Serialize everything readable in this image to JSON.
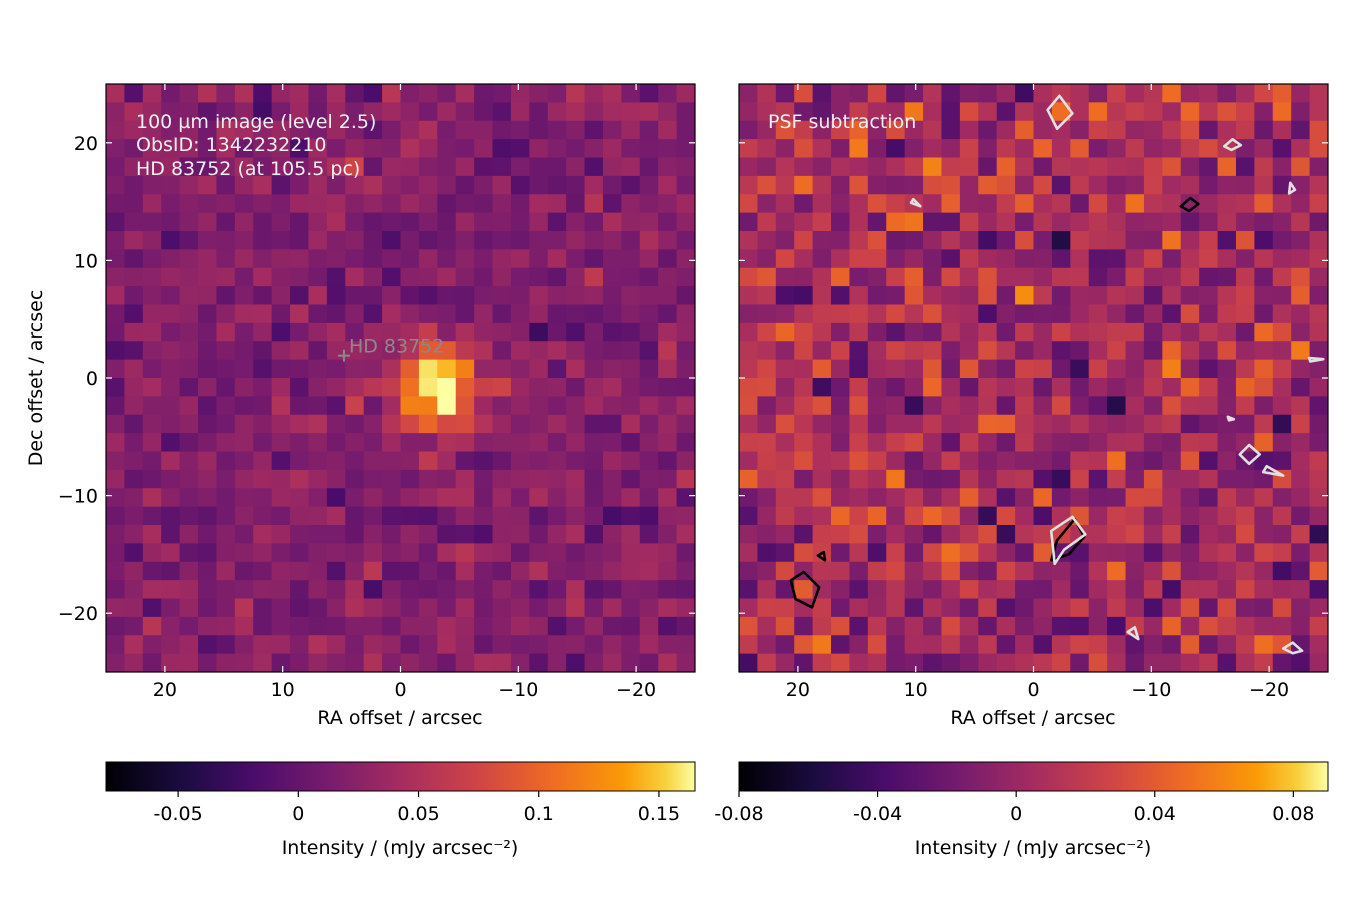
{
  "chart_data": [
    {
      "type": "heatmap",
      "annotations": [
        "100 µm image (level 2.5)",
        "ObsID: 1342232210",
        "HD 83752 (at 105.5 pc)"
      ],
      "star_marker": {
        "label": "HD  83752",
        "x": 4.8,
        "y": 1.9
      },
      "xlabel": "RA offset / arcsec",
      "ylabel": "Dec offset / arcsec",
      "xlim": [
        25,
        -25
      ],
      "ylim": [
        -25,
        25
      ],
      "xticks": [
        20,
        10,
        0,
        -10,
        -20
      ],
      "xtick_labels": [
        "20",
        "10",
        "0",
        "−10",
        "−20"
      ],
      "yticks": [
        20,
        10,
        0,
        -10,
        -20
      ],
      "ytick_labels": [
        "20",
        "10",
        "0",
        "−10",
        "−20"
      ],
      "grid_size": 32,
      "value_range": [
        -0.08,
        0.165
      ],
      "colorbar": {
        "label": "Intensity / (mJy arcsec⁻²)",
        "ticks": [
          -0.05,
          0,
          0.05,
          0.1,
          0.15
        ],
        "tick_labels": [
          "-0.05",
          "0",
          "0.05",
          "0.1",
          "0.15"
        ]
      },
      "source_peak": {
        "x": -3.0,
        "y": -0.5,
        "value": 0.165
      }
    },
    {
      "type": "heatmap",
      "annotations": [
        "PSF subtraction"
      ],
      "xlabel": "RA offset / arcsec",
      "xlim": [
        25,
        -25
      ],
      "ylim": [
        -25,
        25
      ],
      "xticks": [
        20,
        10,
        0,
        -10,
        -20
      ],
      "xtick_labels": [
        "20",
        "10",
        "0",
        "−10",
        "−20"
      ],
      "grid_size": 32,
      "value_range": [
        -0.08,
        0.09
      ],
      "colorbar": {
        "label": "Intensity / (mJy arcsec⁻²)",
        "ticks": [
          -0.08,
          -0.04,
          0,
          0.04,
          0.08
        ],
        "tick_labels": [
          "-0.08",
          "-0.04",
          "0",
          "0.04",
          "0.08"
        ]
      },
      "contours": [
        {
          "color": "#000000",
          "points": [
            [
              19.5,
              -16.5
            ],
            [
              18.2,
              -17.8
            ],
            [
              18.8,
              -19.5
            ],
            [
              20.2,
              -18.8
            ],
            [
              20.6,
              -17.2
            ]
          ]
        },
        {
          "color": "#000000",
          "points": [
            [
              -1.5,
              -15.5
            ],
            [
              -2.0,
              -13.8
            ],
            [
              -3.5,
              -12.0
            ],
            [
              -4.3,
              -13.5
            ],
            [
              -3.0,
              -15.0
            ]
          ]
        },
        {
          "color": "#000000",
          "points": [
            [
              -12.5,
              14.6
            ],
            [
              -13.3,
              15.3
            ],
            [
              -14.0,
              14.8
            ],
            [
              -13.2,
              14.2
            ]
          ]
        },
        {
          "color": "#000000",
          "points": [
            [
              17.8,
              -14.8
            ],
            [
              18.3,
              -15.1
            ],
            [
              17.7,
              -15.5
            ]
          ]
        },
        {
          "color": "#e0e0e0",
          "points": [
            [
              -1.8,
              -15.8
            ],
            [
              -1.5,
              -13.0
            ],
            [
              -3.3,
              -11.8
            ],
            [
              -4.4,
              -13.3
            ],
            [
              -2.6,
              -14.6
            ]
          ]
        },
        {
          "color": "#e0e0e0",
          "points": [
            [
              -1.2,
              22.8
            ],
            [
              -2.2,
              24.0
            ],
            [
              -3.3,
              22.5
            ],
            [
              -2.0,
              21.2
            ]
          ]
        },
        {
          "color": "#e0e0e0",
          "points": [
            [
              -17.5,
              -6.5
            ],
            [
              -18.3,
              -5.7
            ],
            [
              -19.2,
              -6.5
            ],
            [
              -18.3,
              -7.3
            ]
          ]
        },
        {
          "color": "#e0e0e0",
          "points": [
            [
              -19.5,
              -8.0
            ],
            [
              -21.2,
              -8.3
            ],
            [
              -19.8,
              -7.5
            ]
          ]
        },
        {
          "color": "#e0e0e0",
          "points": [
            [
              -16.2,
              19.7
            ],
            [
              -16.9,
              20.3
            ],
            [
              -17.6,
              19.8
            ],
            [
              -16.8,
              19.4
            ]
          ]
        },
        {
          "color": "#e0e0e0",
          "points": [
            [
              -21.2,
              -23.0
            ],
            [
              -22.0,
              -22.5
            ],
            [
              -22.8,
              -23.2
            ],
            [
              -22.0,
              -23.4
            ]
          ]
        },
        {
          "color": "#e0e0e0",
          "points": [
            [
              -8.0,
              -21.6
            ],
            [
              -8.6,
              -21.2
            ],
            [
              -8.9,
              -22.2
            ]
          ]
        },
        {
          "color": "#e0e0e0",
          "points": [
            [
              -21.8,
              16.6
            ],
            [
              -22.2,
              16.0
            ],
            [
              -21.7,
              15.7
            ]
          ]
        },
        {
          "color": "#e0e0e0",
          "points": [
            [
              10.2,
              15.2
            ],
            [
              9.6,
              14.6
            ],
            [
              10.4,
              14.9
            ]
          ]
        },
        {
          "color": "#e0e0e0",
          "points": [
            [
              -16.5,
              -3.3
            ],
            [
              -17.0,
              -3.5
            ],
            [
              -16.6,
              -3.6
            ]
          ]
        },
        {
          "color": "#e0e0e0",
          "points": [
            [
              -23.4,
              1.7
            ],
            [
              -24.6,
              1.6
            ],
            [
              -23.5,
              1.4
            ]
          ]
        }
      ]
    }
  ]
}
